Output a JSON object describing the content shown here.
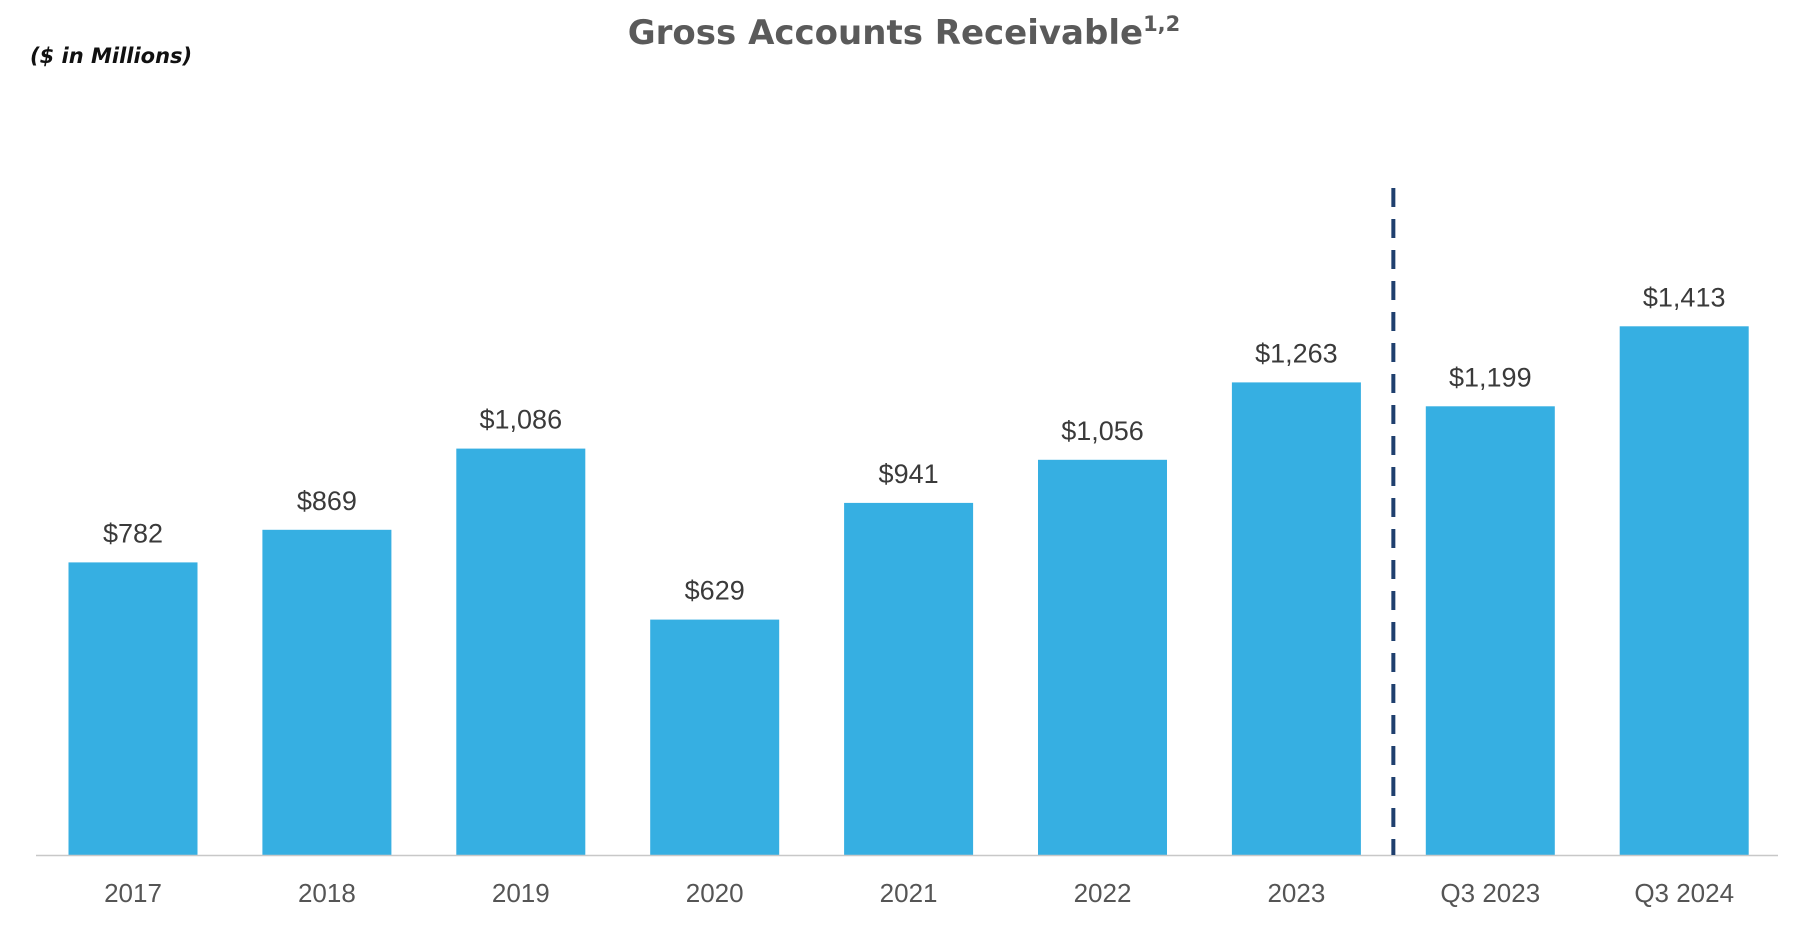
{
  "chart_data": {
    "type": "bar",
    "title": "Gross Accounts Receivable",
    "title_superscript": "1,2",
    "subtitle": "($ in Millions)",
    "categories": [
      "2017",
      "2018",
      "2019",
      "2020",
      "2021",
      "2022",
      "2023",
      "Q3 2023",
      "Q3 2024"
    ],
    "values": [
      782,
      869,
      1086,
      629,
      941,
      1056,
      1263,
      1199,
      1413
    ],
    "data_labels": [
      "$782",
      "$869",
      "$1,086",
      "$629",
      "$941",
      "$1,056",
      "$1,263",
      "$1,199",
      "$1,413"
    ],
    "ylim": [
      0,
      1600
    ],
    "grid": false,
    "legend": "none",
    "divider_after_category": "2023",
    "colors": {
      "bar": "#36AFE2",
      "divider": "#1F3F6E",
      "axis": "#C8C8C8"
    }
  }
}
